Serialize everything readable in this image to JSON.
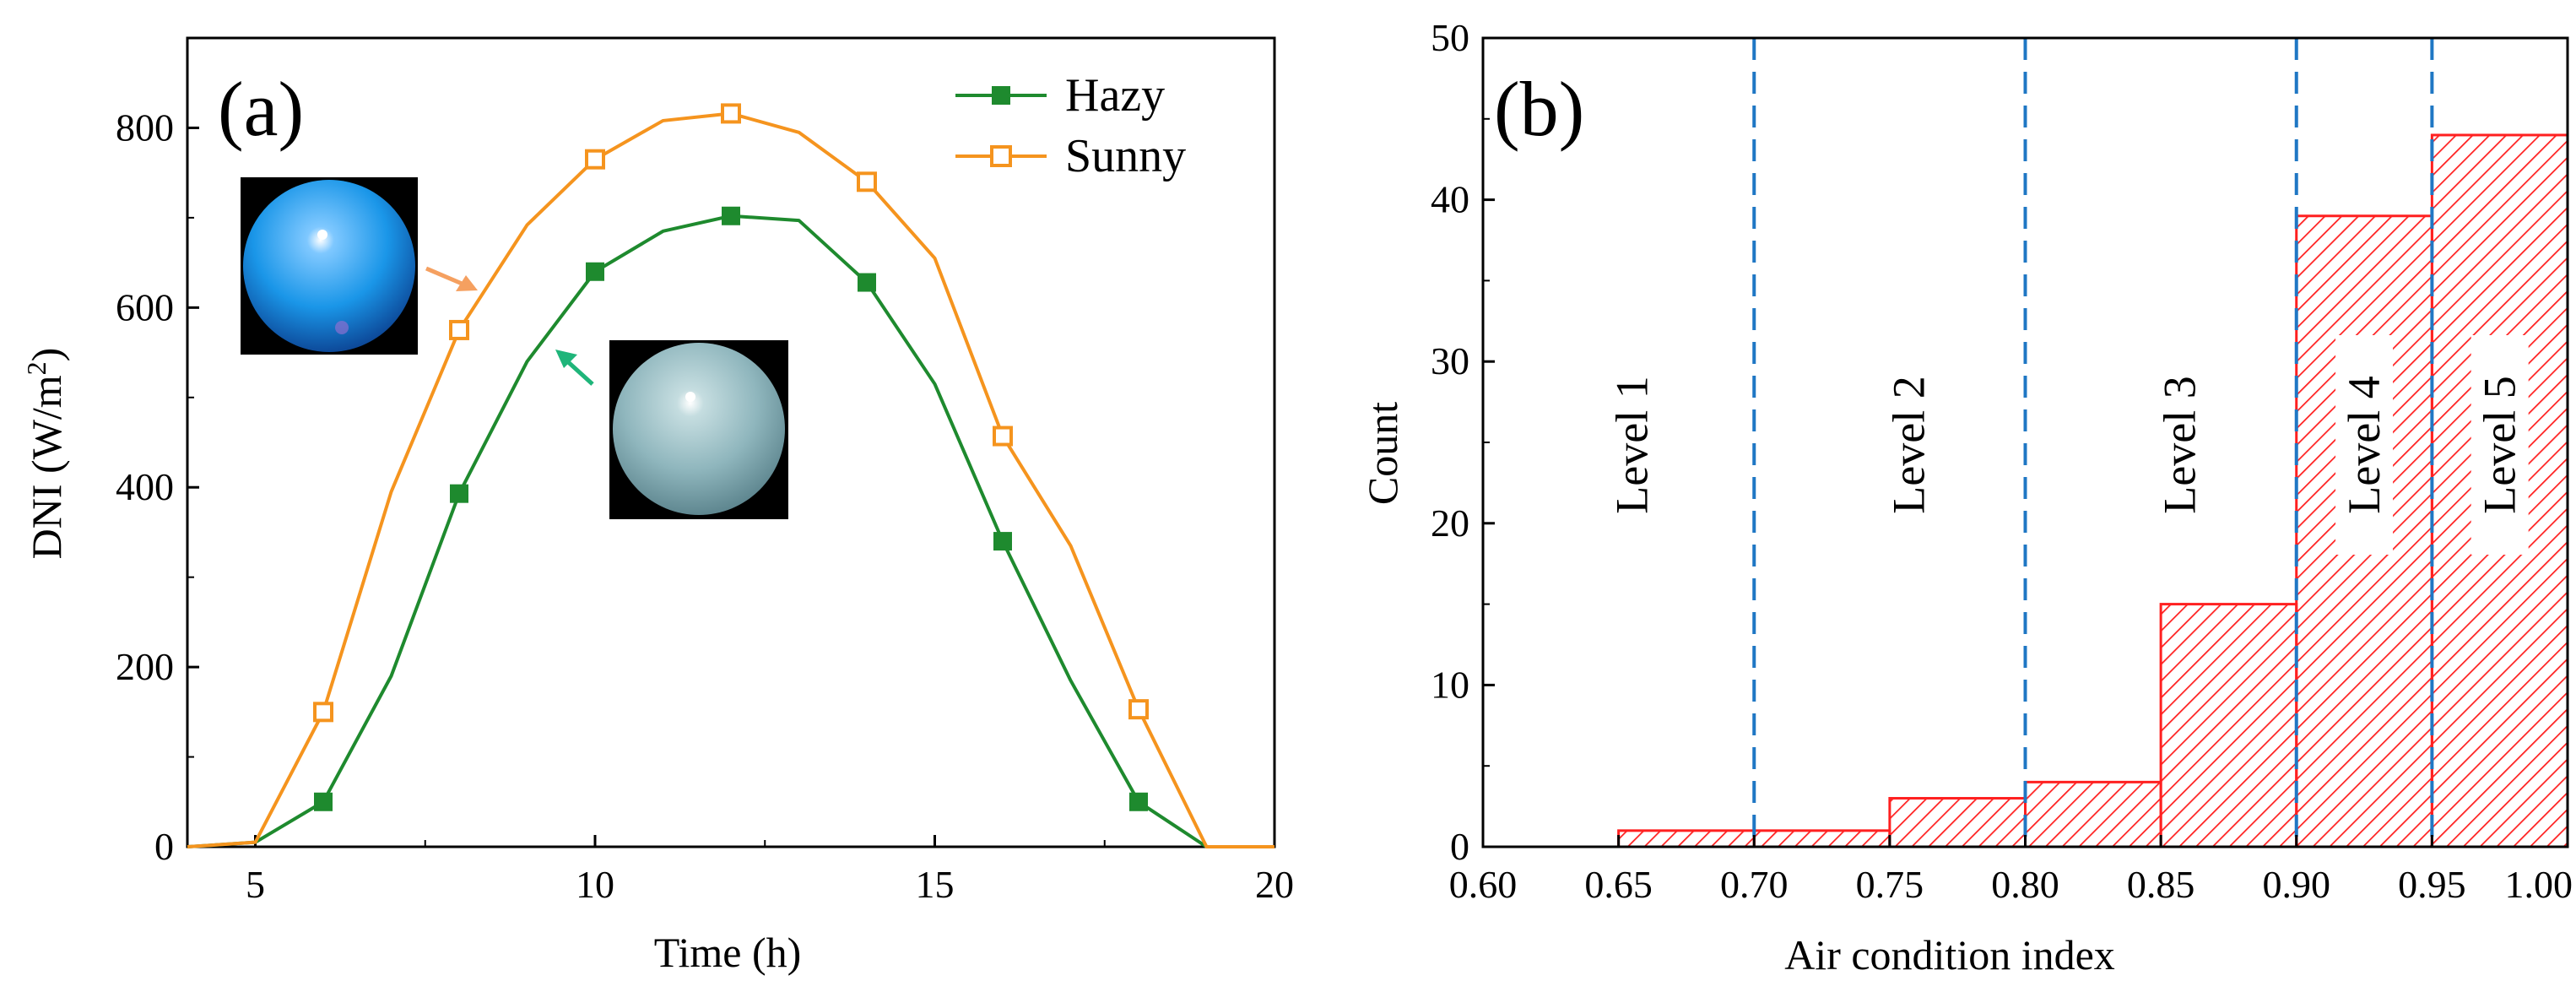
{
  "chart_data": [
    {
      "panel_label": "(a)",
      "type": "line",
      "xlabel": "Time (h)",
      "ylabel_main": "DNI (W/m",
      "ylabel_sup": "2",
      "ylabel_close": ")",
      "xlim": [
        4,
        20
      ],
      "ylim": [
        0,
        900
      ],
      "x_ticks": [
        5,
        10,
        15,
        20
      ],
      "y_ticks": [
        0,
        200,
        400,
        600,
        800
      ],
      "legend": {
        "position": "top-right",
        "entries": [
          "Hazy",
          "Sunny"
        ]
      },
      "series": [
        {
          "name": "Hazy",
          "color": "#1e8a2e",
          "marker": "filled-square",
          "x": [
            4,
            5,
            6,
            7,
            8,
            9,
            10,
            11,
            12,
            13,
            14,
            15,
            16,
            17,
            18,
            19,
            20
          ],
          "y": [
            0,
            5,
            50,
            190,
            393,
            540,
            640,
            685,
            702,
            697,
            628,
            515,
            340,
            185,
            50,
            0,
            0
          ],
          "marked_x": [
            6,
            8,
            10,
            12,
            14,
            16,
            18
          ]
        },
        {
          "name": "Sunny",
          "color": "#f5941e",
          "marker": "open-square",
          "x": [
            4,
            5,
            6,
            7,
            8,
            9,
            10,
            11,
            12,
            13,
            14,
            15,
            16,
            17,
            18,
            19,
            20
          ],
          "y": [
            0,
            5,
            150,
            395,
            575,
            692,
            765,
            808,
            816,
            795,
            740,
            655,
            457,
            335,
            153,
            0,
            0
          ],
          "marked_x": [
            6,
            8,
            10,
            12,
            14,
            16,
            18
          ]
        }
      ],
      "inset_images": [
        {
          "name": "sunny-sky-image",
          "description_icon": "fisheye-sky-clear",
          "arrow_color": "#f5a060"
        },
        {
          "name": "hazy-sky-image",
          "description_icon": "fisheye-sky-hazy",
          "arrow_color": "#1fb57a"
        }
      ]
    },
    {
      "panel_label": "(b)",
      "type": "bar",
      "subtype": "histogram",
      "xlabel": "Air condition index",
      "ylabel": "Count",
      "xlim": [
        0.6,
        1.0
      ],
      "ylim": [
        0,
        50
      ],
      "x_ticks": [
        "0.60",
        "0.65",
        "0.70",
        "0.75",
        "0.80",
        "0.85",
        "0.90",
        "0.95",
        "1.00"
      ],
      "y_ticks": [
        0,
        10,
        20,
        30,
        40,
        50
      ],
      "bar_color": "#ff2020",
      "bins": [
        {
          "from": 0.65,
          "to": 0.7,
          "count": 1
        },
        {
          "from": 0.7,
          "to": 0.75,
          "count": 1
        },
        {
          "from": 0.75,
          "to": 0.8,
          "count": 3
        },
        {
          "from": 0.8,
          "to": 0.85,
          "count": 4
        },
        {
          "from": 0.85,
          "to": 0.9,
          "count": 15
        },
        {
          "from": 0.9,
          "to": 0.95,
          "count": 39
        },
        {
          "from": 0.95,
          "to": 1.0,
          "count": 44
        }
      ],
      "dividers": [
        0.7,
        0.8,
        0.9,
        0.95
      ],
      "divider_color": "#1f77c4",
      "levels": [
        {
          "label": "Level 1",
          "center": 0.655
        },
        {
          "label": "Level 2",
          "center": 0.757
        },
        {
          "label": "Level 3",
          "center": 0.857
        },
        {
          "label": "Level 4",
          "center": 0.925
        },
        {
          "label": "Level 5",
          "center": 0.975
        }
      ]
    }
  ]
}
